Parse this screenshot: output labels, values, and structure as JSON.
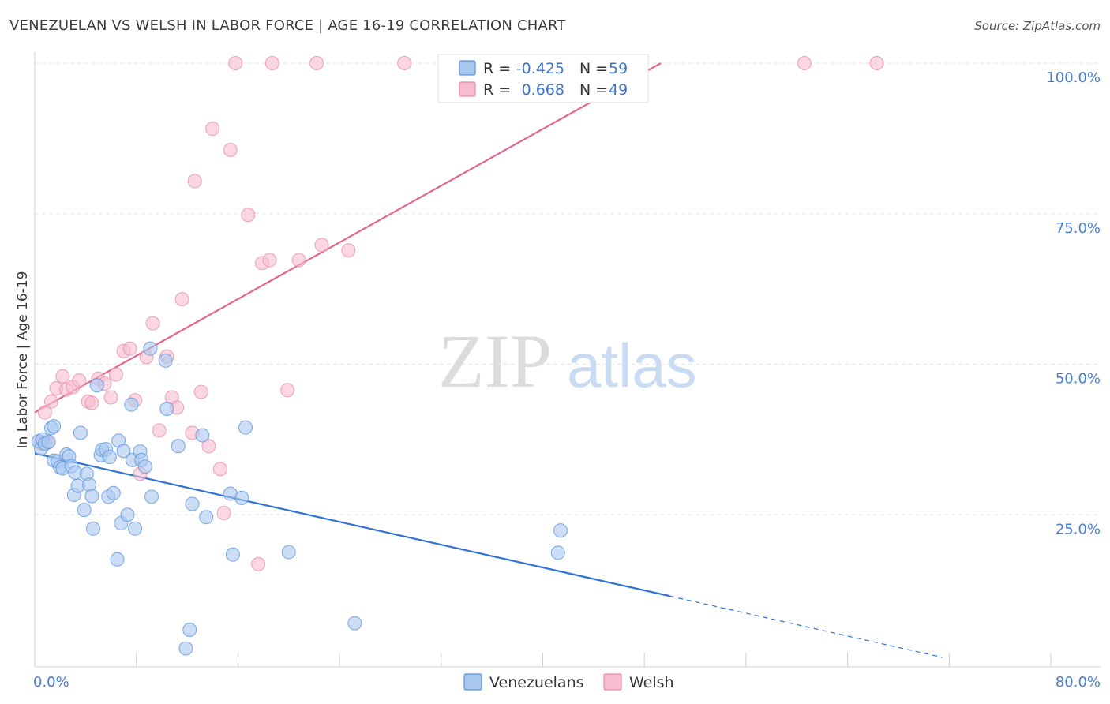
{
  "header": {
    "title": "VENEZUELAN VS WELSH IN LABOR FORCE | AGE 16-19 CORRELATION CHART",
    "source": "Source: ZipAtlas.com"
  },
  "watermark": {
    "part1": "ZIP",
    "part2": "atlas"
  },
  "colors": {
    "venezuelan_fill": "#a9c8f0",
    "venezuelan_stroke": "#5b92dc",
    "venezuelan_line": "#2f73d4",
    "welsh_fill": "#f7bcd0",
    "welsh_stroke": "#e98aab",
    "welsh_line": "#e4668f",
    "tick_label": "#4a7fd0",
    "grid": "#e3e3e3"
  },
  "legend_box": {
    "rows": [
      {
        "r_label": "R =",
        "r_value": "-0.425",
        "n_label": "N =",
        "n_value": "59"
      },
      {
        "r_label": "R =",
        "r_value": "0.668",
        "n_label": "N =",
        "n_value": "49"
      }
    ]
  },
  "bottom_legend": [
    "Venezuelans",
    "Welsh"
  ],
  "chart_data": {
    "type": "scatter",
    "title": "VENEZUELAN VS WELSH IN LABOR FORCE | AGE 16-19 CORRELATION CHART",
    "xlabel": "",
    "ylabel": "In Labor Force | Age 16-19",
    "xlim": [
      0,
      80
    ],
    "ylim": [
      0,
      100
    ],
    "x_tick_labels": [
      "0.0%",
      "80.0%"
    ],
    "y_ticks": [
      25,
      50,
      75,
      100
    ],
    "y_tick_labels": [
      "25.0%",
      "50.0%",
      "75.0%",
      "100.0%"
    ],
    "grid": "horizontal dashed",
    "legend_placement": "top-center",
    "series": [
      {
        "name": "Venezuelans",
        "r": -0.425,
        "n": 59,
        "trend": {
          "x0": 0.0,
          "y0": 35.2,
          "x1": 50.0,
          "y1": 11.5,
          "dashed_to_x": 71.5
        },
        "points": [
          [
            0.3,
            37.2
          ],
          [
            0.5,
            36.0
          ],
          [
            0.6,
            37.5
          ],
          [
            0.8,
            36.8
          ],
          [
            1.1,
            37.1
          ],
          [
            1.3,
            39.4
          ],
          [
            1.5,
            39.7
          ],
          [
            1.5,
            34.0
          ],
          [
            1.8,
            33.9
          ],
          [
            2.0,
            32.9
          ],
          [
            2.2,
            32.7
          ],
          [
            2.5,
            35.0
          ],
          [
            2.7,
            34.7
          ],
          [
            2.9,
            33.1
          ],
          [
            3.1,
            28.3
          ],
          [
            3.2,
            32.0
          ],
          [
            3.4,
            29.8
          ],
          [
            3.6,
            38.6
          ],
          [
            3.9,
            25.8
          ],
          [
            4.1,
            31.8
          ],
          [
            4.3,
            30.0
          ],
          [
            4.5,
            28.1
          ],
          [
            4.6,
            22.7
          ],
          [
            4.9,
            46.5
          ],
          [
            5.2,
            34.9
          ],
          [
            5.3,
            35.8
          ],
          [
            5.6,
            35.9
          ],
          [
            5.8,
            28.0
          ],
          [
            5.9,
            34.6
          ],
          [
            6.2,
            28.6
          ],
          [
            6.5,
            17.6
          ],
          [
            6.6,
            37.3
          ],
          [
            6.8,
            23.6
          ],
          [
            7.0,
            35.6
          ],
          [
            7.3,
            25.0
          ],
          [
            7.6,
            43.3
          ],
          [
            7.7,
            34.1
          ],
          [
            7.9,
            22.7
          ],
          [
            8.3,
            35.5
          ],
          [
            8.4,
            34.1
          ],
          [
            8.7,
            33.0
          ],
          [
            9.1,
            52.6
          ],
          [
            9.2,
            28.0
          ],
          [
            10.3,
            50.6
          ],
          [
            10.4,
            42.6
          ],
          [
            11.3,
            36.4
          ],
          [
            11.9,
            2.8
          ],
          [
            12.2,
            5.9
          ],
          [
            12.4,
            26.8
          ],
          [
            13.2,
            38.2
          ],
          [
            13.5,
            24.6
          ],
          [
            15.4,
            28.5
          ],
          [
            15.6,
            18.4
          ],
          [
            16.3,
            27.8
          ],
          [
            16.6,
            39.5
          ],
          [
            20.0,
            18.8
          ],
          [
            25.2,
            7.0
          ],
          [
            41.2,
            18.7
          ],
          [
            41.4,
            22.4
          ]
        ]
      },
      {
        "name": "Welsh",
        "r": 0.668,
        "n": 49,
        "trend": {
          "x0": 0.0,
          "y0": 42.0,
          "x1": 49.3,
          "y1": 100.0
        },
        "points": [
          [
            0.5,
            36.9
          ],
          [
            0.8,
            42.0
          ],
          [
            1.0,
            37.0
          ],
          [
            1.3,
            43.8
          ],
          [
            1.7,
            46.0
          ],
          [
            2.2,
            48.0
          ],
          [
            2.5,
            45.8
          ],
          [
            3.0,
            46.2
          ],
          [
            3.5,
            47.3
          ],
          [
            4.2,
            43.8
          ],
          [
            4.5,
            43.6
          ],
          [
            5.0,
            47.6
          ],
          [
            5.5,
            46.8
          ],
          [
            6.0,
            44.5
          ],
          [
            6.4,
            48.3
          ],
          [
            7.0,
            52.2
          ],
          [
            7.5,
            52.6
          ],
          [
            7.9,
            44.0
          ],
          [
            8.3,
            31.8
          ],
          [
            8.8,
            51.2
          ],
          [
            9.3,
            56.8
          ],
          [
            9.8,
            39.0
          ],
          [
            10.4,
            51.3
          ],
          [
            10.8,
            44.5
          ],
          [
            11.2,
            42.8
          ],
          [
            11.6,
            60.8
          ],
          [
            12.4,
            38.6
          ],
          [
            12.6,
            80.4
          ],
          [
            13.1,
            45.4
          ],
          [
            13.7,
            36.4
          ],
          [
            14.0,
            89.1
          ],
          [
            14.6,
            32.6
          ],
          [
            14.9,
            25.3
          ],
          [
            15.4,
            85.6
          ],
          [
            15.8,
            100.0
          ],
          [
            16.8,
            74.8
          ],
          [
            17.6,
            16.8
          ],
          [
            17.9,
            66.8
          ],
          [
            18.5,
            67.3
          ],
          [
            18.7,
            100.0
          ],
          [
            19.9,
            45.7
          ],
          [
            20.8,
            67.3
          ],
          [
            22.2,
            100.0
          ],
          [
            22.6,
            69.8
          ],
          [
            24.7,
            68.9
          ],
          [
            29.1,
            100.0
          ],
          [
            37.3,
            100.0
          ],
          [
            60.6,
            100.0
          ],
          [
            66.3,
            100.0
          ]
        ]
      }
    ]
  }
}
